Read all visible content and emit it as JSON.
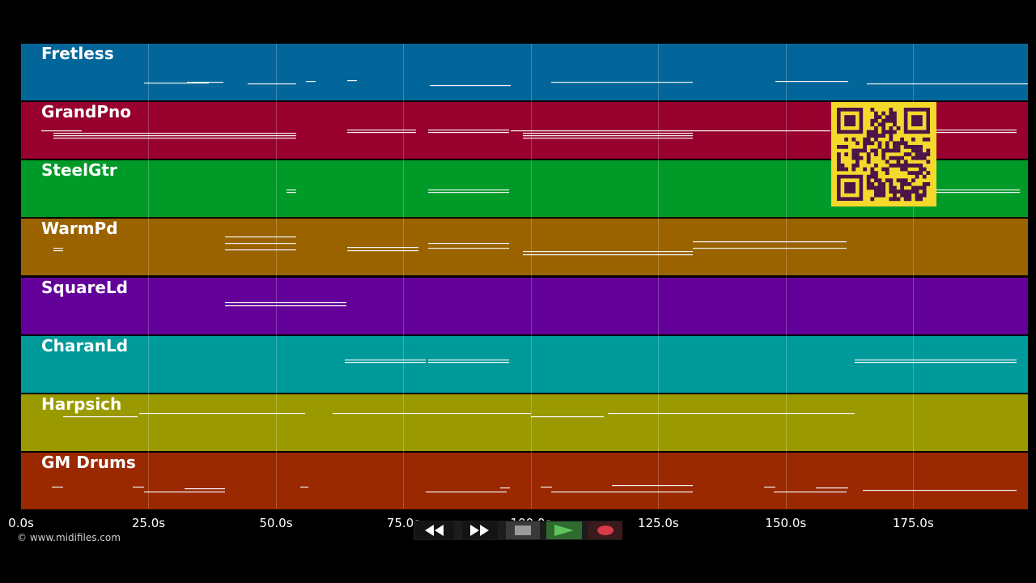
{
  "tracks": [
    {
      "name": "Fretless",
      "color": "#03669a"
    },
    {
      "name": "GrandPno",
      "color": "#98002e"
    },
    {
      "name": "SteelGtr",
      "color": "#009a28"
    },
    {
      "name": "WarmPd",
      "color": "#9a6300"
    },
    {
      "name": "SquareLd",
      "color": "#63009a"
    },
    {
      "name": "CharanLd",
      "color": "#009a9a"
    },
    {
      "name": "Harpsich",
      "color": "#9a9a00"
    },
    {
      "name": "GM Drums",
      "color": "#9a2800"
    }
  ],
  "timeline": {
    "ticks": [
      "0.0s",
      "25.0s",
      "50.0s",
      "75.0s",
      "100.0s",
      "125.0s",
      "150.0s",
      "175.0s"
    ],
    "range_seconds": [
      0,
      197.5
    ]
  },
  "transport": {
    "rewind_icon": "rewind-icon",
    "fast_forward_icon": "fast-forward-icon",
    "stop_icon": "stop-icon",
    "play_icon": "play-icon",
    "record_icon": "record-icon",
    "play_color": "#5cc55c",
    "record_color": "#d93b48"
  },
  "qr_code": {
    "icon": "qr-code-icon",
    "background": "#f4d82c",
    "foreground": "#4b1449"
  },
  "copyright": "© www.midifiles.com"
}
